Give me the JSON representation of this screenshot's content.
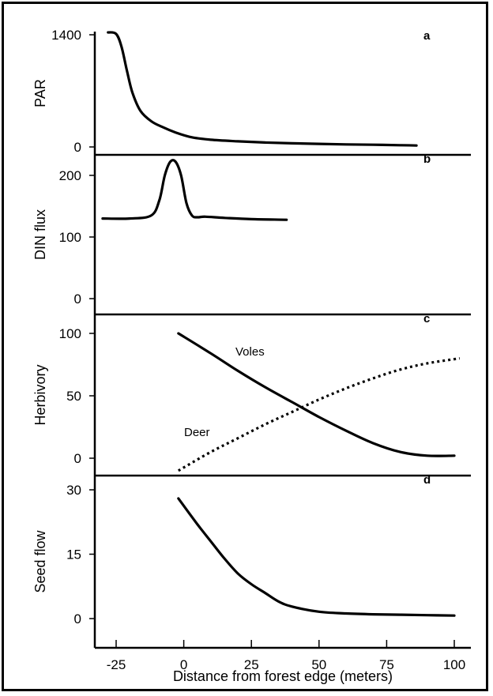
{
  "chart_data": [
    {
      "type": "line",
      "panel_label": "a",
      "ylabel": "PAR",
      "yticks": [
        {
          "value": 0,
          "label": "0"
        },
        {
          "value": 1400,
          "label": "1400"
        }
      ],
      "ylim": [
        0,
        1500
      ],
      "xlim": [
        -33,
        103
      ],
      "series": [
        {
          "name": "",
          "style": "solid",
          "x": [
            -28,
            -25,
            -23,
            -21,
            -19,
            -16,
            -12,
            -8,
            -3,
            3,
            10,
            20,
            30,
            40,
            50,
            60,
            70,
            80,
            86
          ],
          "y": [
            1430,
            1410,
            1250,
            950,
            680,
            450,
            320,
            250,
            180,
            120,
            90,
            70,
            55,
            45,
            38,
            32,
            28,
            22,
            18
          ]
        }
      ]
    },
    {
      "type": "line",
      "panel_label": "b",
      "ylabel": "DIN flux",
      "yticks": [
        {
          "value": 0,
          "label": "0"
        },
        {
          "value": 100,
          "label": "100"
        },
        {
          "value": 200,
          "label": "200"
        }
      ],
      "ylim": [
        0,
        230
      ],
      "xlim": [
        -33,
        103
      ],
      "series": [
        {
          "name": "",
          "style": "solid",
          "x": [
            -30,
            -20,
            -12,
            -9,
            -7,
            -5,
            -3,
            -1,
            1,
            3,
            5,
            8,
            15,
            25,
            38
          ],
          "y": [
            130,
            130,
            135,
            160,
            200,
            222,
            222,
            200,
            155,
            135,
            132,
            133,
            131,
            129,
            128
          ]
        }
      ]
    },
    {
      "type": "line",
      "panel_label": "c",
      "ylabel": "Herbivory",
      "yticks": [
        {
          "value": 0,
          "label": "0"
        },
        {
          "value": 50,
          "label": "50"
        },
        {
          "value": 100,
          "label": "100"
        }
      ],
      "ylim": [
        -10,
        112
      ],
      "xlim": [
        -33,
        103
      ],
      "series": [
        {
          "name": "Voles",
          "style": "solid",
          "x": [
            -2,
            10,
            20,
            30,
            40,
            50,
            60,
            70,
            80,
            90,
            100
          ],
          "y": [
            100,
            84,
            70,
            57,
            45,
            33,
            22,
            12,
            5,
            2,
            2
          ]
        },
        {
          "name": "Deer",
          "style": "dotted",
          "x": [
            -2,
            10,
            20,
            30,
            40,
            50,
            60,
            70,
            80,
            90,
            102
          ],
          "y": [
            -10,
            5,
            16,
            27,
            37,
            47,
            56,
            64,
            71,
            76,
            80
          ]
        }
      ]
    },
    {
      "type": "line",
      "panel_label": "d",
      "ylabel": "Seed flow",
      "yticks": [
        {
          "value": 0,
          "label": "0"
        },
        {
          "value": 15,
          "label": "15"
        },
        {
          "value": 30,
          "label": "30"
        }
      ],
      "ylim": [
        -2,
        32
      ],
      "xlim": [
        -33,
        103
      ],
      "xlabel": "Distance from forest edge (meters)",
      "xticks": [
        {
          "value": -25,
          "label": "-25"
        },
        {
          "value": 0,
          "label": "0"
        },
        {
          "value": 25,
          "label": "25"
        },
        {
          "value": 50,
          "label": "50"
        },
        {
          "value": 75,
          "label": "75"
        },
        {
          "value": 100,
          "label": "100"
        }
      ],
      "series": [
        {
          "name": "",
          "style": "solid",
          "x": [
            -2,
            5,
            10,
            15,
            20,
            25,
            30,
            35,
            40,
            50,
            60,
            70,
            80,
            90,
            100
          ],
          "y": [
            28,
            22,
            18,
            14,
            10.5,
            8,
            6,
            4,
            2.8,
            1.6,
            1.2,
            1.0,
            0.9,
            0.8,
            0.7
          ]
        }
      ]
    }
  ]
}
